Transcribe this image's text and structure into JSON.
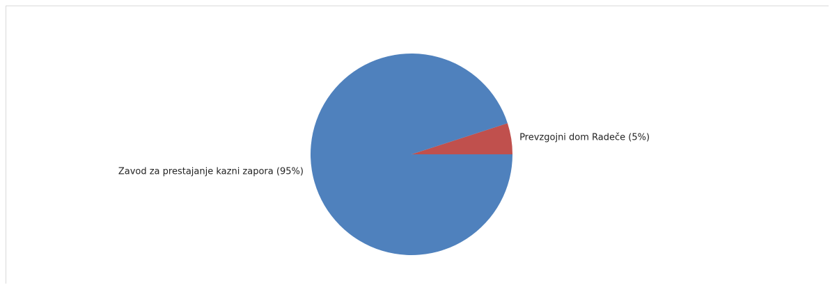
{
  "chart_data": {
    "type": "pie",
    "title": "",
    "slices": [
      {
        "label": "Zavod za prestajanje kazni zapora (95%)",
        "value": 95,
        "color": "#4f81bd"
      },
      {
        "label": "Prevzgojni dom Radeče (5%)",
        "value": 5,
        "color": "#c0504d"
      }
    ],
    "grid": false,
    "legend": "none"
  }
}
